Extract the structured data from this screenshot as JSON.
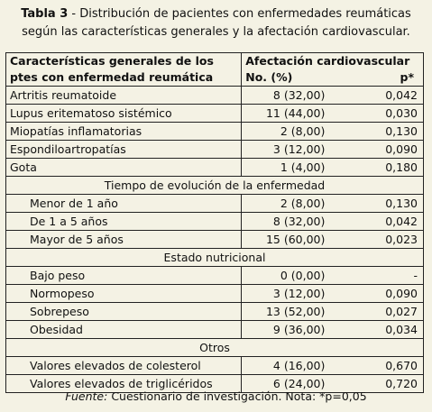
{
  "caption": {
    "label": "Tabla 3",
    "text_line1": " - Distribución de pacientes con enfermedades reumáticas",
    "text_line2": "según las características generales y la afectación cardiovascular."
  },
  "table": {
    "header": {
      "col1_line1": "Características generales de los",
      "col1_line2": "ptes con enfermedad reumática",
      "col2_line1": "Afectación cardiovascular",
      "col2_line2": "No. (%)",
      "col3": "p*"
    },
    "rows": [
      {
        "type": "data",
        "label": "Artritis reumatoide",
        "n": "8 (32,00)",
        "p": "0,042",
        "indent": false
      },
      {
        "type": "data",
        "label": "Lupus eritematoso sistémico",
        "n": "11 (44,00)",
        "p": "0,030",
        "indent": false
      },
      {
        "type": "data",
        "label": "Miopatías inflamatorias",
        "n": "2 (8,00)",
        "p": "0,130",
        "indent": false
      },
      {
        "type": "data",
        "label": "Espondiloartropatías",
        "n": "3 (12,00)",
        "p": "0,090",
        "indent": false
      },
      {
        "type": "data",
        "label": "Gota",
        "n": "1 (4,00)",
        "p": "0,180",
        "indent": false
      },
      {
        "type": "section",
        "label": "Tiempo de evolución de la enfermedad"
      },
      {
        "type": "data",
        "label": "Menor de 1 año",
        "n": "2 (8,00)",
        "p": "0,130",
        "indent": true
      },
      {
        "type": "data",
        "label": "De 1 a 5 años",
        "n": "8 (32,00)",
        "p": "0,042",
        "indent": true
      },
      {
        "type": "data",
        "label": "Mayor de 5 años",
        "n": "15 (60,00)",
        "p": "0,023",
        "indent": true
      },
      {
        "type": "section",
        "label": "Estado nutricional"
      },
      {
        "type": "data",
        "label": "Bajo peso",
        "n": "0 (0,00)",
        "p": "-",
        "indent": true
      },
      {
        "type": "data",
        "label": "Normopeso",
        "n": "3 (12,00)",
        "p": "0,090",
        "indent": true
      },
      {
        "type": "data",
        "label": "Sobrepeso",
        "n": "13 (52,00)",
        "p": "0,027",
        "indent": true
      },
      {
        "type": "data",
        "label": "Obesidad",
        "n": "9 (36,00)",
        "p": "0,034",
        "indent": true
      },
      {
        "type": "section",
        "label": "Otros"
      },
      {
        "type": "data",
        "label": "Valores elevados de colesterol",
        "n": "4 (16,00)",
        "p": "0,670",
        "indent": true
      },
      {
        "type": "data",
        "label": "Valores elevados de triglicéridos",
        "n": "6 (24,00)",
        "p": "0,720",
        "indent": true
      }
    ]
  },
  "footer": {
    "source_label": "Fuente:",
    "source_text": " Cuestionario de investigación. Nota: *p=0,05"
  }
}
